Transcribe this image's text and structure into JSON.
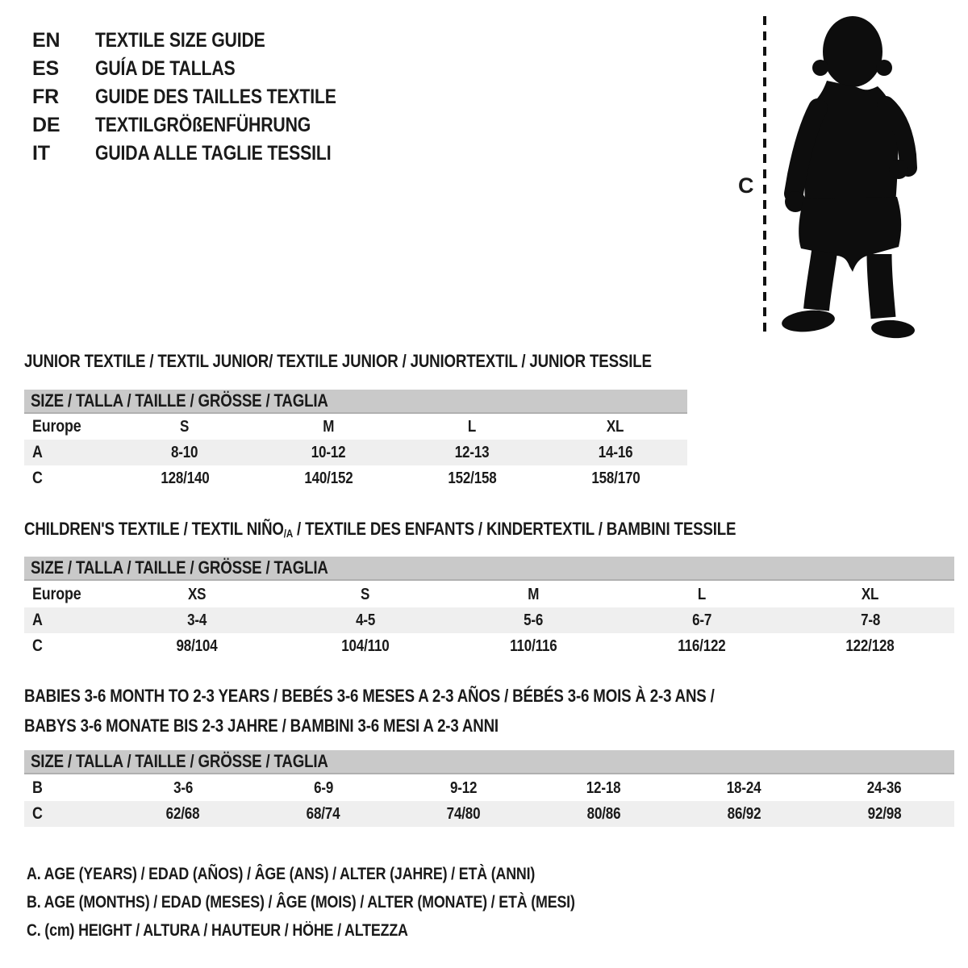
{
  "languages": [
    {
      "code": "EN",
      "label": "TEXTILE SIZE GUIDE"
    },
    {
      "code": "ES",
      "label": "GUÍA DE TALLAS"
    },
    {
      "code": "FR",
      "label": "GUIDE DES TAILLES TEXTILE"
    },
    {
      "code": "DE",
      "label": "TEXTILGRÖßENFÜHRUNG"
    },
    {
      "code": "IT",
      "label": "GUIDA ALLE TAGLIE TESSILI"
    }
  ],
  "figure": {
    "image": "toddler-silhouette",
    "marker_label": "C"
  },
  "colors": {
    "header_bar": "#c9c9c9",
    "row_band": "#efefef",
    "ink": "#1a1a1a"
  },
  "tables": [
    {
      "name": "junior-textile",
      "title": "JUNIOR TEXTILE / TEXTIL JUNIOR/ TEXTILE JUNIOR / JUNIORTEXTIL / JUNIOR TESSILE",
      "size_header": "SIZE / TALLA / TAILLE / GRÖSSE / TAGLIA",
      "rows": [
        {
          "label": "Europe",
          "band": false,
          "values": [
            "S",
            "M",
            "L",
            "XL"
          ]
        },
        {
          "label": "A",
          "band": true,
          "values": [
            "8-10",
            "10-12",
            "12-13",
            "14-16"
          ]
        },
        {
          "label": "C",
          "band": false,
          "values": [
            "128/140",
            "140/152",
            "152/158",
            "158/170"
          ]
        }
      ]
    },
    {
      "name": "childrens-textile",
      "title_main": "CHILDREN'S TEXTILE / TEXTIL NIÑO",
      "title_sub": "/A",
      "title_rest": " / TEXTILE DES ENFANTS / KINDERTEXTIL / BAMBINI TESSILE",
      "size_header": "SIZE / TALLA / TAILLE / GRÖSSE / TAGLIA",
      "rows": [
        {
          "label": "Europe",
          "band": false,
          "values": [
            "XS",
            "S",
            "M",
            "L",
            "XL"
          ]
        },
        {
          "label": "A",
          "band": true,
          "values": [
            "3-4",
            "4-5",
            "5-6",
            "6-7",
            "7-8"
          ]
        },
        {
          "label": "C",
          "band": false,
          "values": [
            "98/104",
            "104/110",
            "110/116",
            "116/122",
            "122/128"
          ]
        }
      ]
    },
    {
      "name": "babies-textile",
      "title_line1": "BABIES 3-6 MONTH TO 2-3 YEARS / BEBÉS 3-6 MESES A 2-3 AÑOS / BÉBÉS 3-6 MOIS À 2-3 ANS /",
      "title_line2": "BABYS 3-6 MONATE BIS 2-3 JAHRE / BAMBINI 3-6 MESI A 2-3 ANNI",
      "size_header": "SIZE / TALLA / TAILLE / GRÖSSE / TAGLIA",
      "rows": [
        {
          "label": "B",
          "band": false,
          "values": [
            "3-6",
            "6-9",
            "9-12",
            "12-18",
            "18-24",
            "24-36"
          ]
        },
        {
          "label": "C",
          "band": true,
          "values": [
            "62/68",
            "68/74",
            "74/80",
            "80/86",
            "86/92",
            "92/98"
          ]
        }
      ]
    }
  ],
  "legend": [
    "A. AGE (YEARS) / EDAD (AÑOS) / ÂGE (ANS) / ALTER (JAHRE) / ETÀ (ANNI)",
    "B. AGE (MONTHS) / EDAD (MESES) / ÂGE (MOIS) / ALTER (MONATE) / ETÀ (MESI)",
    "C. (cm) HEIGHT / ALTURA / HAUTEUR / HÖHE / ALTEZZA"
  ]
}
